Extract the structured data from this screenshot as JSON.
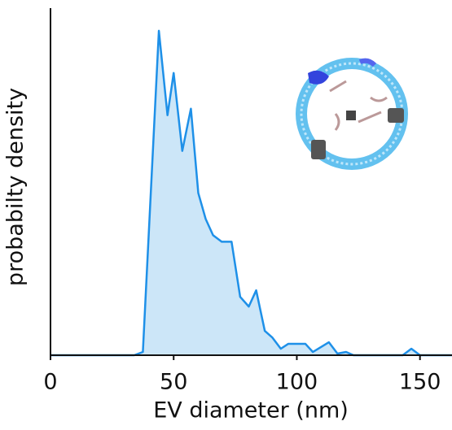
{
  "chart_data": {
    "type": "area",
    "xlabel": "EV diameter (nm)",
    "ylabel": "probabilty density",
    "x": [
      0,
      34,
      37.5,
      44,
      47.5,
      50,
      53.5,
      57,
      60,
      63,
      66,
      69.5,
      73.5,
      77,
      80.5,
      83.5,
      87,
      90,
      93.5,
      96.5,
      103.5,
      106.5,
      113,
      116.5,
      120,
      123,
      143,
      146.5,
      150,
      163
    ],
    "series": [
      {
        "color": "#1e90e8",
        "values": [
          0,
          0,
          0.01,
          1.0,
          0.74,
          0.87,
          0.63,
          0.76,
          0.5,
          0.42,
          0.37,
          0.35,
          0.35,
          0.18,
          0.15,
          0.2,
          0.075,
          0.055,
          0.02,
          0.035,
          0.035,
          0.01,
          0.04,
          0.005,
          0.01,
          0,
          0,
          0.02,
          0,
          0
        ]
      }
    ],
    "fill_color": "#cce6f8",
    "xlim": [
      0,
      163
    ],
    "ylim": [
      0,
      1.07
    ],
    "xticks": [
      0,
      50,
      100,
      150
    ]
  }
}
